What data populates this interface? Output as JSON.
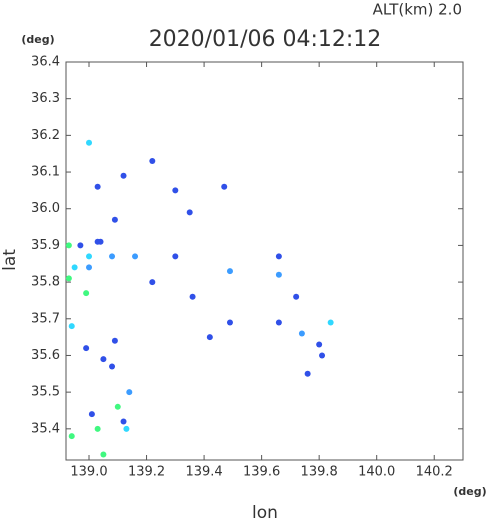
{
  "chart_data": {
    "type": "scatter",
    "title": "2020/01/06 04:12:12",
    "subtitle": "ALT(km) 2.0",
    "x_label": "lon",
    "y_label": "lat",
    "x_unit": "(deg)",
    "y_unit": "(deg)",
    "xlim": [
      138.92,
      140.3
    ],
    "ylim": [
      35.315,
      36.4
    ],
    "xticks": [
      {
        "value": 139.0,
        "label": "139.0"
      },
      139.2,
      139.4,
      139.6,
      139.8,
      {
        "value": 140.0,
        "label": "140.0"
      },
      140.2
    ],
    "yticks": [
      35.4,
      35.5,
      35.6,
      35.7,
      35.8,
      35.9,
      {
        "value": 36.0,
        "label": "36.0"
      },
      36.1,
      36.2,
      36.3,
      36.4
    ],
    "series": [
      {
        "color": "#3050e8",
        "x": [
          139.03,
          138.97,
          139.12,
          139.22,
          139.3,
          139.47,
          139.35,
          139.09,
          139.04,
          139.22,
          139.36,
          139.49,
          139.42,
          139.66,
          139.72,
          139.66,
          139.05,
          139.08,
          139.09,
          139.12,
          139.01,
          139.8,
          139.81,
          139.76,
          138.99,
          139.3,
          139.03
        ],
        "values": [
          36.06,
          35.9,
          36.09,
          36.13,
          36.05,
          36.06,
          35.99,
          35.97,
          35.91,
          35.8,
          35.76,
          35.69,
          35.65,
          35.87,
          35.76,
          35.69,
          35.59,
          35.57,
          35.64,
          35.42,
          35.44,
          35.63,
          35.6,
          35.55,
          35.62,
          35.87,
          35.91
        ]
      },
      {
        "color": "#3c9cff",
        "x": [
          139.49,
          139.66,
          139.16,
          139.08,
          139.74,
          139.14,
          139.0
        ],
        "values": [
          35.83,
          35.82,
          35.87,
          35.87,
          35.66,
          35.5,
          35.84
        ]
      },
      {
        "color": "#30d8ff",
        "x": [
          139.0,
          138.94,
          139.13,
          139.84,
          138.95,
          139.0
        ],
        "values": [
          36.18,
          35.68,
          35.4,
          35.69,
          35.84,
          35.87
        ]
      },
      {
        "color": "#40f880",
        "x": [
          139.05,
          139.1,
          139.03,
          138.94,
          138.99,
          138.93,
          138.93
        ],
        "values": [
          35.33,
          35.46,
          35.4,
          35.38,
          35.77,
          35.9,
          35.81
        ]
      }
    ]
  }
}
